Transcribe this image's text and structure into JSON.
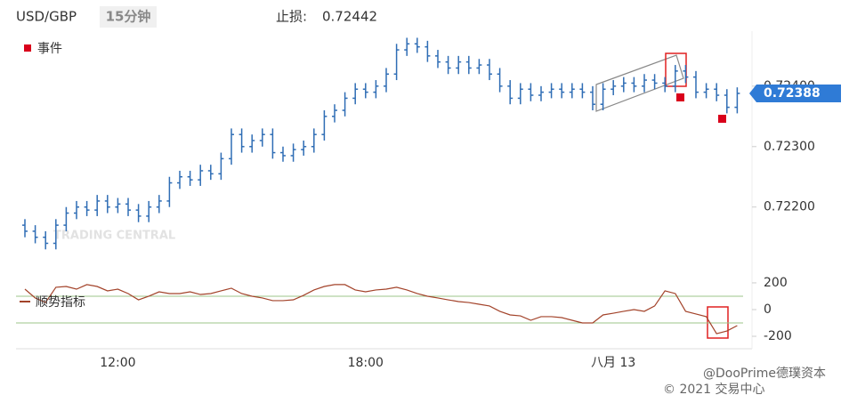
{
  "header": {
    "symbol": "USD/GBP",
    "interval": "15分钟",
    "stop_loss_label": "止损:",
    "stop_loss": 0.72442
  },
  "chart_data": [
    {
      "type": "ohlc",
      "color": "#2f6db5",
      "categories": [
        null,
        null,
        null,
        null,
        null,
        null,
        null,
        null,
        null,
        "12:00",
        null,
        null,
        null,
        null,
        null,
        null,
        null,
        null,
        null,
        null,
        null,
        null,
        null,
        null,
        null,
        null,
        null,
        null,
        null,
        null,
        null,
        null,
        null,
        "18:00",
        null,
        null,
        null,
        null,
        null,
        null,
        null,
        null,
        null,
        null,
        null,
        null,
        null,
        null,
        null,
        null,
        null,
        null,
        null,
        null,
        null,
        null,
        null,
        "八月 13",
        null,
        null,
        null,
        null,
        null,
        null,
        null,
        null,
        null,
        null,
        null,
        null
      ],
      "open": [
        0.7217,
        0.7216,
        0.7215,
        0.7214,
        0.7217,
        0.7219,
        0.722,
        0.72195,
        0.7221,
        0.722,
        0.72205,
        0.72195,
        0.72185,
        0.722,
        0.7221,
        0.7224,
        0.7225,
        0.72245,
        0.7226,
        0.72255,
        0.7228,
        0.7232,
        0.723,
        0.7231,
        0.7232,
        0.7229,
        0.72285,
        0.72295,
        0.723,
        0.7232,
        0.7235,
        0.7236,
        0.7238,
        0.72395,
        0.7239,
        0.724,
        0.7242,
        0.7246,
        0.7247,
        0.72465,
        0.7245,
        0.7244,
        0.7243,
        0.7244,
        0.7243,
        0.72435,
        0.7242,
        0.724,
        0.7238,
        0.72395,
        0.72385,
        0.7239,
        0.72395,
        0.7239,
        0.72395,
        0.7239,
        0.7237,
        0.72395,
        0.724,
        0.72405,
        0.724,
        0.7241,
        0.72405,
        0.724,
        0.72425,
        0.72415,
        0.7239,
        0.72395,
        0.72385,
        0.72365
      ],
      "high": [
        0.7218,
        0.7217,
        0.7216,
        0.7218,
        0.722,
        0.7221,
        0.7221,
        0.7222,
        0.7222,
        0.72215,
        0.72215,
        0.72205,
        0.7221,
        0.7222,
        0.7225,
        0.7226,
        0.7226,
        0.7227,
        0.7227,
        0.7229,
        0.7233,
        0.7233,
        0.7232,
        0.7233,
        0.7233,
        0.723,
        0.72305,
        0.7231,
        0.7233,
        0.7236,
        0.7237,
        0.7239,
        0.72405,
        0.72405,
        0.7241,
        0.7243,
        0.7247,
        0.7248,
        0.7248,
        0.72475,
        0.7246,
        0.7245,
        0.7245,
        0.7245,
        0.72445,
        0.72445,
        0.7243,
        0.7241,
        0.72405,
        0.72405,
        0.724,
        0.72405,
        0.72405,
        0.72405,
        0.72405,
        0.724,
        0.72405,
        0.7241,
        0.72415,
        0.72415,
        0.7242,
        0.7242,
        0.72415,
        0.72435,
        0.72435,
        0.72425,
        0.72405,
        0.72405,
        0.72395,
        0.72398
      ],
      "low": [
        0.7215,
        0.7214,
        0.7213,
        0.7213,
        0.7216,
        0.7218,
        0.72185,
        0.72185,
        0.7219,
        0.7219,
        0.72185,
        0.72175,
        0.72175,
        0.7219,
        0.722,
        0.7223,
        0.72235,
        0.72235,
        0.72245,
        0.72245,
        0.7227,
        0.7229,
        0.7229,
        0.723,
        0.7228,
        0.72275,
        0.72275,
        0.72285,
        0.7229,
        0.7231,
        0.7234,
        0.7235,
        0.7237,
        0.7238,
        0.7238,
        0.7239,
        0.7241,
        0.7245,
        0.72455,
        0.7244,
        0.7243,
        0.7242,
        0.7242,
        0.7242,
        0.7242,
        0.7241,
        0.7239,
        0.7237,
        0.7237,
        0.72375,
        0.72375,
        0.7238,
        0.7238,
        0.7238,
        0.7238,
        0.7236,
        0.7236,
        0.72385,
        0.7239,
        0.7239,
        0.7239,
        0.72395,
        0.7239,
        0.7239,
        0.72405,
        0.7238,
        0.7238,
        0.72375,
        0.72355,
        0.72355
      ],
      "close": [
        0.7216,
        0.7215,
        0.7214,
        0.7217,
        0.7219,
        0.722,
        0.72195,
        0.7221,
        0.722,
        0.72205,
        0.72195,
        0.72185,
        0.722,
        0.7221,
        0.7224,
        0.7225,
        0.72245,
        0.7226,
        0.72255,
        0.7228,
        0.7232,
        0.723,
        0.7231,
        0.7232,
        0.7229,
        0.72285,
        0.72295,
        0.723,
        0.7232,
        0.7235,
        0.7236,
        0.7238,
        0.72395,
        0.7239,
        0.724,
        0.7242,
        0.7246,
        0.7247,
        0.72465,
        0.7245,
        0.7244,
        0.7243,
        0.7244,
        0.7243,
        0.72435,
        0.7242,
        0.724,
        0.7238,
        0.72395,
        0.72385,
        0.7239,
        0.72395,
        0.7239,
        0.72395,
        0.7239,
        0.7237,
        0.72395,
        0.724,
        0.72405,
        0.724,
        0.7241,
        0.72405,
        0.724,
        0.72425,
        0.72415,
        0.7239,
        0.72395,
        0.72385,
        0.72365,
        0.72388
      ],
      "ylim": [
        0.72101,
        0.72491
      ],
      "yticks": [
        {
          "value": 0.724,
          "label": "0.72400"
        },
        {
          "value": 0.723,
          "label": "0.72300"
        },
        {
          "value": 0.722,
          "label": "0.72200"
        }
      ],
      "events": {
        "name": "事件",
        "color": "#d9001b"
      },
      "watermark": "TRADING CENTRAL"
    },
    {
      "type": "line",
      "series": [
        {
          "name": "顺势指标",
          "color": "#a3432a",
          "values": [
            153,
            87,
            53,
            167,
            173,
            153,
            187,
            173,
            140,
            153,
            120,
            73,
            100,
            133,
            120,
            120,
            133,
            113,
            120,
            140,
            160,
            120,
            100,
            87,
            67,
            67,
            73,
            107,
            147,
            173,
            187,
            187,
            147,
            133,
            147,
            153,
            167,
            147,
            120,
            100,
            87,
            73,
            60,
            53,
            40,
            27,
            -13,
            -40,
            -47,
            -80,
            -53,
            -53,
            -60,
            -80,
            -100,
            -100,
            -40,
            -27,
            -13,
            0,
            -13,
            27,
            140,
            120,
            -13,
            -33,
            -53,
            -180,
            -160,
            -120
          ]
        }
      ],
      "hlines": [
        100,
        -100
      ],
      "hline_color": "#9cc48a",
      "ylim": [
        -293,
        253
      ],
      "yticks": [
        200,
        0,
        -200
      ]
    }
  ],
  "footer": {
    "source": "@DooPrime德璞资本",
    "copyright": "© 2021 交易中心"
  }
}
